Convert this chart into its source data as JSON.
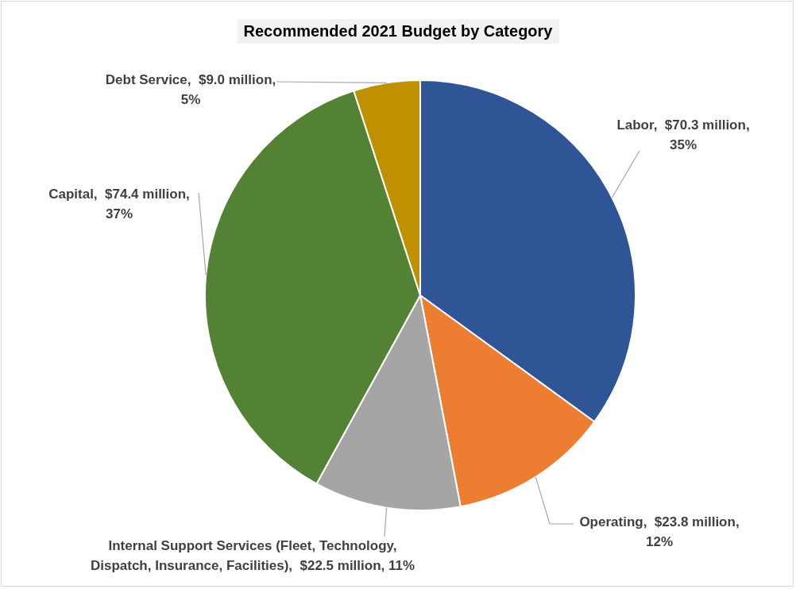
{
  "chart_data": {
    "type": "pie",
    "title": "Recommended 2021 Budget by Category",
    "categories": [
      "Labor",
      "Operating",
      "Internal Support Services (Fleet, Technology, Dispatch, Insurance, Facilities)",
      "Capital",
      "Debt Service"
    ],
    "values": [
      35,
      12,
      11,
      37,
      5
    ],
    "colors": [
      "#2f5597",
      "#ed7d31",
      "#a5a5a5",
      "#548235",
      "#bf9000"
    ],
    "value_labels": [
      "$70.3 million, 35%",
      "$23.8 million, 12%",
      "$22.5 million, 11%",
      "$74.4 million, 37%",
      "$9.0 million, 5%"
    ]
  }
}
